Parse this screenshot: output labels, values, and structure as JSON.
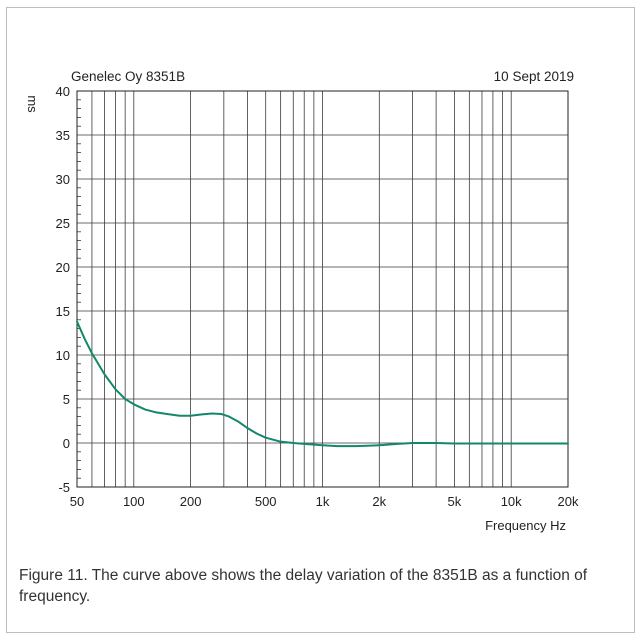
{
  "header": {
    "left": "Genelec Oy 8351B",
    "right": "10 Sept 2019"
  },
  "caption": "Figure 11. The curve above shows the delay variation of the 8351B as a function of frequency.",
  "chart_data": {
    "type": "line",
    "title": "",
    "xlabel": "Frequency Hz",
    "ylabel": "ms",
    "xscale": "log",
    "xlim": [
      50,
      20000
    ],
    "ylim": [
      -5,
      40
    ],
    "grid": true,
    "x_ticks": [
      {
        "value": 50,
        "label": "50"
      },
      {
        "value": 100,
        "label": "100"
      },
      {
        "value": 200,
        "label": "200"
      },
      {
        "value": 500,
        "label": "500"
      },
      {
        "value": 1000,
        "label": "1k"
      },
      {
        "value": 2000,
        "label": "2k"
      },
      {
        "value": 5000,
        "label": "5k"
      },
      {
        "value": 10000,
        "label": "10k"
      },
      {
        "value": 20000,
        "label": "20k"
      }
    ],
    "y_ticks": [
      -5,
      0,
      5,
      10,
      15,
      20,
      25,
      30,
      35,
      40
    ],
    "series": [
      {
        "color": "#13876a",
        "x": [
          50,
          55,
          60,
          70,
          80,
          90,
          100,
          115,
          130,
          150,
          175,
          200,
          230,
          260,
          290,
          320,
          360,
          400,
          450,
          500,
          600,
          700,
          800,
          1000,
          1200,
          1500,
          1800,
          2000,
          2500,
          3000,
          4000,
          5000,
          7000,
          10000,
          15000,
          20000
        ],
        "y": [
          13.8,
          11.8,
          10.2,
          7.8,
          6.1,
          5.0,
          4.4,
          3.8,
          3.5,
          3.3,
          3.1,
          3.1,
          3.25,
          3.35,
          3.3,
          3.0,
          2.4,
          1.7,
          1.05,
          0.6,
          0.15,
          0.0,
          -0.1,
          -0.25,
          -0.35,
          -0.35,
          -0.3,
          -0.25,
          -0.1,
          0.0,
          0.0,
          -0.05,
          -0.05,
          -0.05,
          -0.05,
          -0.05
        ]
      }
    ]
  }
}
